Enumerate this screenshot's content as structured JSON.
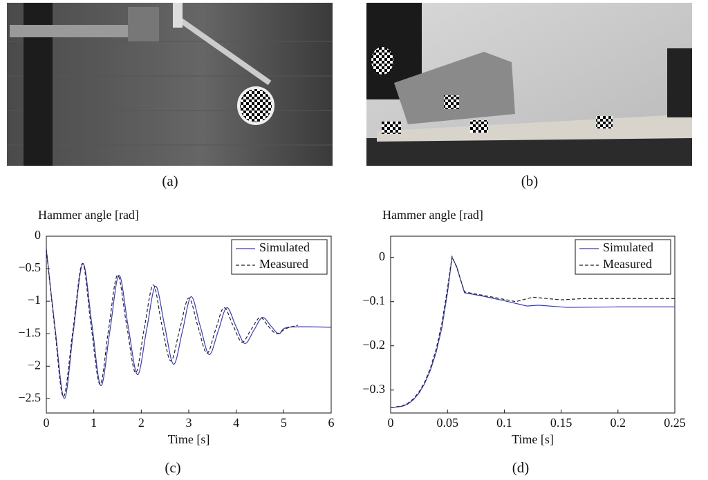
{
  "photos": [
    {
      "caption": "(a)"
    },
    {
      "caption": "(b)"
    }
  ],
  "chart_data": [
    {
      "type": "line",
      "caption": "(c)",
      "ylabel": "Hammer angle [rad]",
      "xlabel": "Time [s]",
      "xlim": [
        0,
        6
      ],
      "ylim": [
        -2.72,
        0
      ],
      "xticks": [
        0,
        1,
        2,
        3,
        4,
        5,
        6
      ],
      "yticks": [
        0,
        {
          "value": -0.5,
          "label": "−0.5"
        },
        {
          "value": -1,
          "label": "−1"
        },
        {
          "value": -1.5,
          "label": "−1.5"
        },
        {
          "value": -2,
          "label": "−2"
        },
        {
          "value": -2.5,
          "label": "−2.5"
        }
      ],
      "smooth": true,
      "legend": "upper right",
      "grid": false,
      "series": [
        {
          "name": "Simulated",
          "color": "#3a3ab8",
          "linestyle": "solid",
          "x": [
            0,
            0.19,
            0.38,
            0.57,
            0.77,
            0.96,
            1.15,
            1.34,
            1.53,
            1.72,
            1.92,
            2.11,
            2.3,
            2.49,
            2.68,
            2.87,
            3.05,
            3.24,
            3.43,
            3.62,
            3.8,
            3.99,
            4.18,
            4.37,
            4.55,
            4.73,
            4.9,
            5.1,
            6
          ],
          "values": [
            -0.2,
            -1.45,
            -2.5,
            -1.46,
            -0.42,
            -1.36,
            -2.3,
            -1.45,
            -0.6,
            -1.37,
            -2.13,
            -1.45,
            -0.77,
            -1.37,
            -1.97,
            -1.45,
            -0.93,
            -1.38,
            -1.82,
            -1.46,
            -1.1,
            -1.38,
            -1.65,
            -1.45,
            -1.25,
            -1.38,
            -1.5,
            -1.4,
            -1.4
          ]
        },
        {
          "name": "Measured",
          "color": "#222222",
          "linestyle": "dashed",
          "x": [
            0,
            0.18,
            0.36,
            0.56,
            0.76,
            0.94,
            1.13,
            1.31,
            1.5,
            1.69,
            1.88,
            2.06,
            2.25,
            2.43,
            2.62,
            2.81,
            3.0,
            3.19,
            3.38,
            3.56,
            3.74,
            3.93,
            4.12,
            4.31,
            4.5,
            4.67,
            4.85,
            5.05,
            5.3
          ],
          "values": [
            -0.2,
            -1.43,
            -2.47,
            -1.45,
            -0.42,
            -1.36,
            -2.28,
            -1.44,
            -0.6,
            -1.36,
            -2.1,
            -1.43,
            -0.75,
            -1.35,
            -1.92,
            -1.43,
            -0.95,
            -1.38,
            -1.8,
            -1.45,
            -1.1,
            -1.37,
            -1.63,
            -1.44,
            -1.25,
            -1.38,
            -1.5,
            -1.42,
            -1.37
          ]
        }
      ]
    },
    {
      "type": "line",
      "caption": "(d)",
      "ylabel": "Hammer angle [rad]",
      "xlabel": "Time [s]",
      "xlim": [
        0,
        0.25
      ],
      "ylim": [
        -0.352,
        0.048
      ],
      "xticks": [
        0,
        0.05,
        0.1,
        0.15,
        0.2,
        0.25
      ],
      "yticks": [
        0,
        {
          "value": -0.1,
          "label": "−0.1"
        },
        {
          "value": -0.2,
          "label": "−0.2"
        },
        {
          "value": -0.3,
          "label": "−0.3"
        }
      ],
      "smooth": false,
      "legend": "upper right",
      "grid": false,
      "series": [
        {
          "name": "Simulated",
          "color": "#3a3ab8",
          "linestyle": "solid",
          "x": [
            0,
            0.01,
            0.015,
            0.02,
            0.025,
            0.03,
            0.035,
            0.04,
            0.045,
            0.05,
            0.054,
            0.058,
            0.065,
            0.08,
            0.1,
            0.12,
            0.13,
            0.155,
            0.2,
            0.25
          ],
          "values": [
            -0.34,
            -0.337,
            -0.332,
            -0.322,
            -0.307,
            -0.285,
            -0.255,
            -0.215,
            -0.16,
            -0.08,
            0.0,
            -0.02,
            -0.08,
            -0.087,
            -0.098,
            -0.11,
            -0.108,
            -0.113,
            -0.112,
            -0.112
          ]
        },
        {
          "name": "Measured",
          "color": "#222222",
          "linestyle": "dashed",
          "x": [
            0,
            0.01,
            0.015,
            0.02,
            0.025,
            0.03,
            0.035,
            0.04,
            0.045,
            0.05,
            0.054,
            0.058,
            0.065,
            0.09,
            0.11,
            0.125,
            0.15,
            0.17,
            0.25
          ],
          "values": [
            -0.34,
            -0.336,
            -0.33,
            -0.32,
            -0.304,
            -0.282,
            -0.25,
            -0.208,
            -0.15,
            -0.07,
            0.002,
            -0.022,
            -0.078,
            -0.09,
            -0.1,
            -0.09,
            -0.096,
            -0.093,
            -0.093
          ]
        }
      ]
    }
  ]
}
